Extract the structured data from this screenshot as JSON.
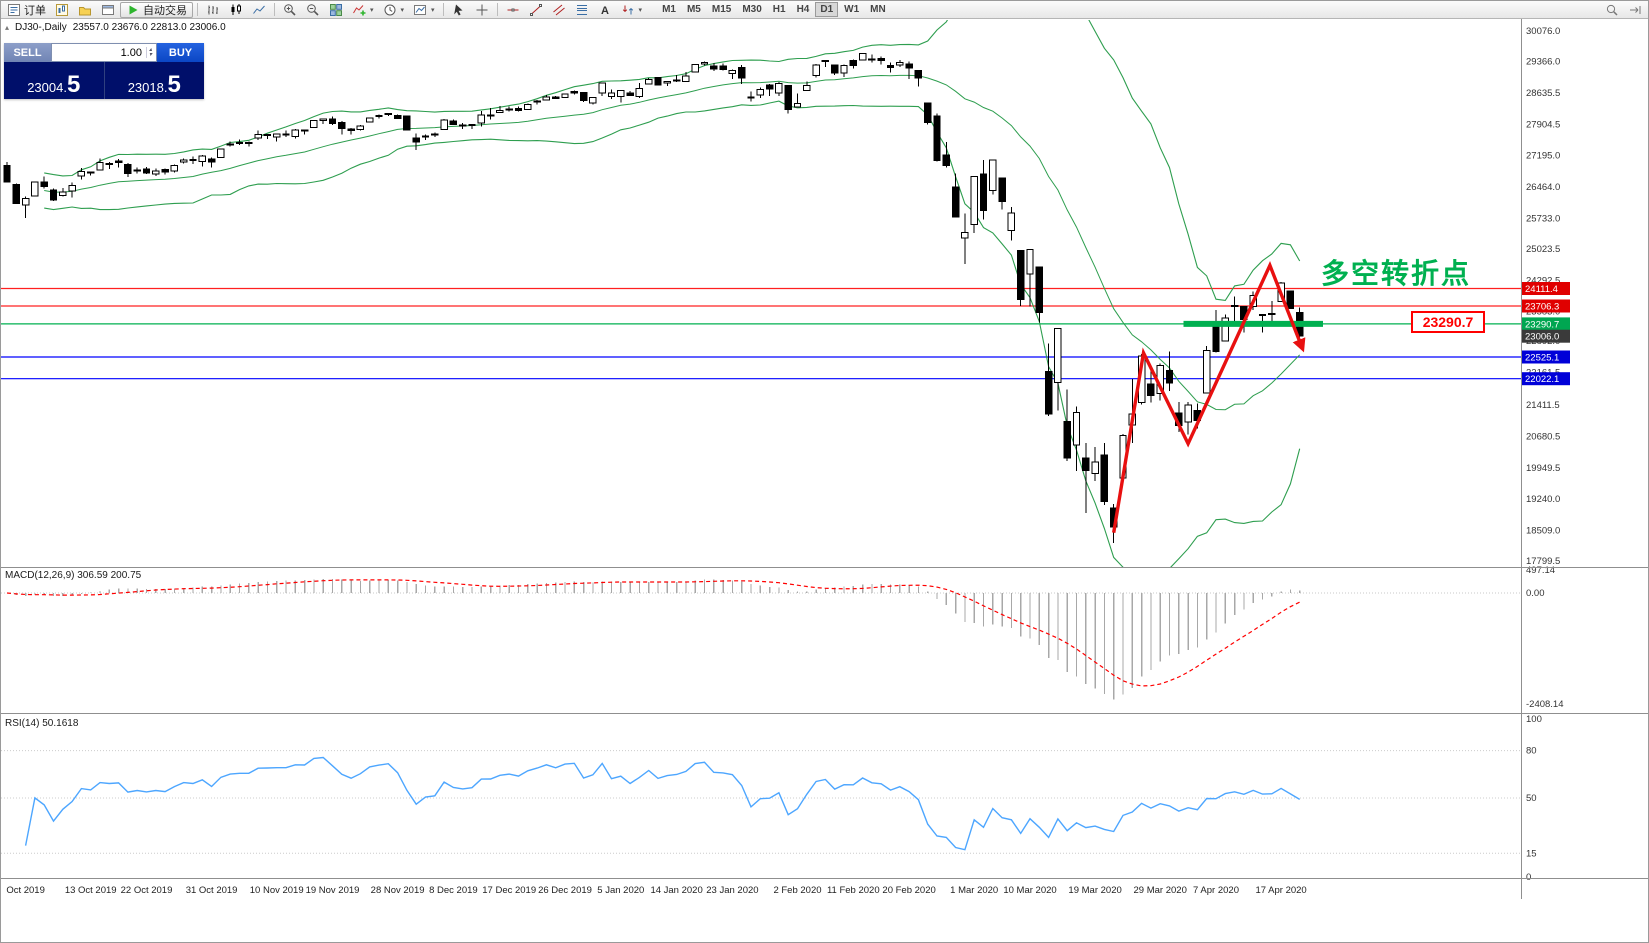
{
  "icons": {
    "one_click_toggle": "▴",
    "dropdown_caret": "▾",
    "lot_up": "▴",
    "lot_down": "▾"
  },
  "toolbar": {
    "order_label": "订单",
    "autotrade_label": "自动交易",
    "timeframes": [
      "M1",
      "M5",
      "M15",
      "M30",
      "H1",
      "H4",
      "D1",
      "W1",
      "MN"
    ],
    "active_timeframe": "D1"
  },
  "chart_header": {
    "symbol_info": "DJ30-,Daily",
    "ohlc_text": "23557.0 23676.0 22813.0 23006.0"
  },
  "trade_widget": {
    "sell_label": "SELL",
    "buy_label": "BUY",
    "lot_value": "1.00",
    "sell_price": "23004.5",
    "sell_price_small": "23004.",
    "sell_price_big": "5",
    "buy_price": "23018.5",
    "buy_price_small": "23018.",
    "buy_price_big": "5"
  },
  "chart_data": {
    "type": "candlestick",
    "symbol": "DJ30-",
    "period": "Daily",
    "ohlc": [
      [
        26962,
        27046,
        26562,
        26573
      ],
      [
        26520,
        26538,
        26139,
        26078
      ],
      [
        26051,
        26243,
        25743,
        26201
      ],
      [
        26254,
        26590,
        26244,
        26574
      ],
      [
        26576,
        26705,
        26424,
        26478
      ],
      [
        26392,
        26425,
        26144,
        26164
      ],
      [
        26267,
        26438,
        26246,
        26346
      ],
      [
        26370,
        26571,
        26219,
        26497
      ],
      [
        26717,
        26905,
        26636,
        26817
      ],
      [
        26811,
        26825,
        26724,
        26787
      ],
      [
        26858,
        27120,
        26845,
        27025
      ],
      [
        26981,
        27047,
        26883,
        27002
      ],
      [
        27060,
        27113,
        26912,
        27026
      ],
      [
        26985,
        27013,
        26694,
        26770
      ],
      [
        26860,
        26911,
        26771,
        26828
      ],
      [
        26882,
        26927,
        26765,
        26788
      ],
      [
        26766,
        26891,
        26714,
        26834
      ],
      [
        26864,
        26891,
        26754,
        26805
      ],
      [
        26831,
        26978,
        26795,
        26958
      ],
      [
        27038,
        27121,
        27002,
        27090
      ],
      [
        27098,
        27165,
        26990,
        27071
      ],
      [
        27056,
        27207,
        26940,
        27186
      ],
      [
        27112,
        27143,
        26918,
        27046
      ],
      [
        27143,
        27347,
        27142,
        27347
      ],
      [
        27444,
        27517,
        27400,
        27462
      ],
      [
        27490,
        27560,
        27433,
        27492
      ],
      [
        27471,
        27518,
        27406,
        27492
      ],
      [
        27592,
        27774,
        27555,
        27674
      ],
      [
        27657,
        27694,
        27576,
        27681
      ],
      [
        27621,
        27704,
        27517,
        27691
      ],
      [
        27680,
        27770,
        27620,
        27691
      ],
      [
        27634,
        27806,
        27590,
        27783
      ],
      [
        27757,
        27800,
        27676,
        27781
      ],
      [
        27843,
        28004,
        27843,
        28004
      ],
      [
        28005,
        28040,
        27919,
        28036
      ],
      [
        28040,
        28090,
        27894,
        27934
      ],
      [
        27962,
        27987,
        27675,
        27821
      ],
      [
        27801,
        27832,
        27678,
        27766
      ],
      [
        27800,
        27898,
        27773,
        27875
      ],
      [
        27971,
        28068,
        27953,
        28066
      ],
      [
        28091,
        28146,
        28051,
        28121
      ],
      [
        28142,
        28174,
        28111,
        28164
      ],
      [
        28120,
        28144,
        28046,
        28051
      ],
      [
        28109,
        28110,
        27782,
        27783
      ],
      [
        27600,
        27700,
        27325,
        27502
      ],
      [
        27634,
        27675,
        27556,
        27649
      ],
      [
        27695,
        27723,
        27617,
        27677
      ],
      [
        27800,
        28035,
        27800,
        28015
      ],
      [
        27990,
        28021,
        27903,
        27909
      ],
      [
        27903,
        27949,
        27804,
        27881
      ],
      [
        27899,
        27925,
        27801,
        27911
      ],
      [
        27940,
        28224,
        27859,
        28132
      ],
      [
        28123,
        28290,
        28028,
        28135
      ],
      [
        28191,
        28337,
        28191,
        28235
      ],
      [
        28267,
        28328,
        28217,
        28267
      ],
      [
        28279,
        28323,
        28214,
        28239
      ],
      [
        28254,
        28396,
        28248,
        28377
      ],
      [
        28440,
        28473,
        28373,
        28455
      ],
      [
        28472,
        28592,
        28472,
        28552
      ],
      [
        28553,
        28576,
        28503,
        28515
      ],
      [
        28539,
        28624,
        28535,
        28621
      ],
      [
        28675,
        28702,
        28607,
        28645
      ],
      [
        28654,
        28664,
        28428,
        28462
      ],
      [
        28414,
        28547,
        28376,
        28538
      ],
      [
        28639,
        28873,
        28565,
        28868
      ],
      [
        28554,
        28716,
        28500,
        28635
      ],
      [
        28554,
        28708,
        28418,
        28703
      ],
      [
        28639,
        28685,
        28565,
        28583
      ],
      [
        28556,
        28866,
        28522,
        28745
      ],
      [
        28851,
        28988,
        28844,
        28957
      ],
      [
        28994,
        29009,
        28815,
        28824
      ],
      [
        28869,
        28910,
        28805,
        28907
      ],
      [
        28928,
        29054,
        28897,
        28939
      ],
      [
        28903,
        29127,
        28897,
        29030
      ],
      [
        29131,
        29300,
        29131,
        29297
      ],
      [
        29313,
        29374,
        29280,
        29348
      ],
      [
        29269,
        29339,
        29152,
        29196
      ],
      [
        29270,
        29320,
        29166,
        29186
      ],
      [
        29096,
        29189,
        28966,
        29160
      ],
      [
        29230,
        29288,
        28843,
        28990
      ],
      [
        28542,
        28671,
        28440,
        28536
      ],
      [
        28594,
        28764,
        28520,
        28723
      ],
      [
        28820,
        28845,
        28575,
        28734
      ],
      [
        28640,
        28890,
        28569,
        28859
      ],
      [
        28813,
        28813,
        28169,
        28256
      ],
      [
        28320,
        28630,
        28320,
        28400
      ],
      [
        28697,
        28904,
        28697,
        28808
      ],
      [
        29049,
        29308,
        29000,
        29291
      ],
      [
        29388,
        29408,
        29246,
        29380
      ],
      [
        29286,
        29286,
        29056,
        29103
      ],
      [
        29105,
        29299,
        29008,
        29277
      ],
      [
        29396,
        29415,
        29210,
        29276
      ],
      [
        29406,
        29568,
        29406,
        29551
      ],
      [
        29430,
        29535,
        29345,
        29423
      ],
      [
        29440,
        29481,
        29296,
        29398
      ],
      [
        29282,
        29346,
        29117,
        29232
      ],
      [
        29284,
        29409,
        29245,
        29348
      ],
      [
        29309,
        29369,
        28960,
        29220
      ],
      [
        29157,
        29157,
        28793,
        28992
      ],
      [
        28403,
        28403,
        27912,
        27961
      ],
      [
        28103,
        28160,
        27053,
        27081
      ],
      [
        27202,
        27502,
        26918,
        26958
      ],
      [
        26463,
        26778,
        25752,
        25767
      ],
      [
        25282,
        25843,
        24681,
        25409
      ],
      [
        25591,
        26706,
        25392,
        26703
      ],
      [
        26763,
        27085,
        25707,
        25917
      ],
      [
        26383,
        27102,
        26286,
        27090
      ],
      [
        26671,
        26671,
        25943,
        26121
      ],
      [
        25457,
        25994,
        25226,
        25865
      ],
      [
        24992,
        24992,
        23706,
        23851
      ],
      [
        24453,
        25020,
        23690,
        25018
      ],
      [
        24604,
        24604,
        23328,
        23553
      ],
      [
        22184,
        22837,
        21154,
        21200
      ],
      [
        21935,
        23189,
        21285,
        23185
      ],
      [
        21028,
        21768,
        20116,
        20188
      ],
      [
        20487,
        21379,
        19882,
        21237
      ],
      [
        20188,
        20531,
        18917,
        19898
      ],
      [
        19830,
        20442,
        19649,
        20087
      ],
      [
        20253,
        20531,
        19094,
        19173
      ],
      [
        19028,
        19121,
        18213,
        18591
      ],
      [
        19722,
        20737,
        19649,
        20704
      ],
      [
        20948,
        22019,
        20538,
        21200
      ],
      [
        21468,
        22595,
        21427,
        22552
      ],
      [
        21898,
        22327,
        21469,
        21636
      ],
      [
        21678,
        22378,
        21522,
        22327
      ],
      [
        22208,
        22653,
        21742,
        21917
      ],
      [
        21227,
        21487,
        20784,
        20943
      ],
      [
        21025,
        21477,
        20735,
        21413
      ],
      [
        21287,
        21447,
        20863,
        21052
      ],
      [
        21693,
        22783,
        21693,
        22679
      ],
      [
        23329,
        23617,
        22634,
        22653
      ],
      [
        22893,
        23513,
        22886,
        23433
      ],
      [
        23690,
        23924,
        23333,
        23719
      ],
      [
        23698,
        23698,
        23096,
        23390
      ],
      [
        23690,
        24040,
        23616,
        23949
      ],
      [
        23504,
        23524,
        23093,
        23504
      ],
      [
        23517,
        23818,
        23232,
        23537
      ],
      [
        23815,
        24264,
        23815,
        24242
      ],
      [
        24052,
        24052,
        23648,
        23650
      ],
      [
        23557,
        23676,
        22813,
        23006
      ]
    ],
    "x_labels": [
      {
        "index": 2,
        "text": "Oct 2019"
      },
      {
        "index": 9,
        "text": "13 Oct 2019"
      },
      {
        "index": 15,
        "text": "22 Oct 2019"
      },
      {
        "index": 22,
        "text": "31 Oct 2019"
      },
      {
        "index": 29,
        "text": "10 Nov 2019"
      },
      {
        "index": 35,
        "text": "19 Nov 2019"
      },
      {
        "index": 42,
        "text": "28 Nov 2019"
      },
      {
        "index": 48,
        "text": "8 Dec 2019"
      },
      {
        "index": 54,
        "text": "17 Dec 2019"
      },
      {
        "index": 60,
        "text": "26 Dec 2019"
      },
      {
        "index": 66,
        "text": "5 Jan 2020"
      },
      {
        "index": 72,
        "text": "14 Jan 2020"
      },
      {
        "index": 78,
        "text": "23 Jan 2020"
      },
      {
        "index": 85,
        "text": "2 Feb 2020"
      },
      {
        "index": 91,
        "text": "11 Feb 2020"
      },
      {
        "index": 97,
        "text": "20 Feb 2020"
      },
      {
        "index": 104,
        "text": "1 Mar 2020"
      },
      {
        "index": 110,
        "text": "10 Mar 2020"
      },
      {
        "index": 117,
        "text": "19 Mar 2020"
      },
      {
        "index": 124,
        "text": "29 Mar 2020"
      },
      {
        "index": 130,
        "text": "7 Apr 2020"
      },
      {
        "index": 137,
        "text": "17 Apr 2020"
      }
    ],
    "y_ticks": [
      "30076.0",
      "29366.0",
      "28635.5",
      "27904.5",
      "27195.0",
      "26464.0",
      "25733.0",
      "25023.5",
      "24292.5",
      "23583.0",
      "22892.0",
      "22161.5",
      "21411.5",
      "20680.5",
      "19949.5",
      "19240.0",
      "18509.0",
      "17799.5"
    ],
    "hlines": [
      {
        "value": 24111.4,
        "color": "red"
      },
      {
        "value": 23706.3,
        "color": "red"
      },
      {
        "value": 23290.7,
        "color": "green"
      },
      {
        "value": 22525.1,
        "color": "blue"
      },
      {
        "value": 22022.1,
        "color": "blue"
      }
    ],
    "price_tags": [
      {
        "text": "24111.4",
        "value": 24111.4,
        "type": "red"
      },
      {
        "text": "23706.3",
        "value": 23706.3,
        "type": "red"
      },
      {
        "text": "23290.7",
        "value": 23290.7,
        "type": "green"
      },
      {
        "text": "23006.0",
        "value": 23006.0,
        "type": "current"
      },
      {
        "text": "22525.1",
        "value": 22525.1,
        "type": "blue"
      },
      {
        "text": "22022.1",
        "value": 22022.1,
        "type": "blue"
      }
    ],
    "indicators": {
      "bollinger": {
        "period": 20,
        "deviation": 2
      },
      "macd": {
        "label": "MACD(12,26,9) 306.59 200.75",
        "fast": 12,
        "slow": 26,
        "signal": 9,
        "scale": [
          "497.14",
          "0.00",
          "-2408.14"
        ]
      },
      "rsi": {
        "label": "RSI(14) 50.1618",
        "period": 14,
        "scale": [
          "100",
          "80",
          "50",
          "15",
          "0"
        ],
        "levels": [
          80,
          50,
          15
        ]
      }
    },
    "annotations": {
      "zigzag_points": [
        [
          119,
          18456
        ],
        [
          122.2,
          22620
        ],
        [
          127,
          20516
        ],
        [
          135.8,
          24650
        ],
        [
          139.3,
          22720
        ]
      ],
      "support_segment": {
        "value": 23290.7,
        "from_index": 126.5,
        "to_index": 141.5
      },
      "turning_point_label": "多空转折点",
      "price_callout": "23290.7"
    },
    "colors": {
      "bull": "#ffffff",
      "bear": "#000000",
      "bollinger": "#2e9e4f",
      "macd_histogram": "#a8a8a8",
      "macd_signal": "#ff0000",
      "rsi": "#4da6ff",
      "hline_red": "#ff2020",
      "hline_green": "#00b050",
      "hline_blue": "#0000ff",
      "tag_red": "#e00000",
      "tag_green": "#00a651",
      "tag_blue": "#0000d8",
      "tag_current": "#3a3a3a",
      "annotation_red": "#e81010",
      "annotation_green": "#00b050"
    }
  }
}
